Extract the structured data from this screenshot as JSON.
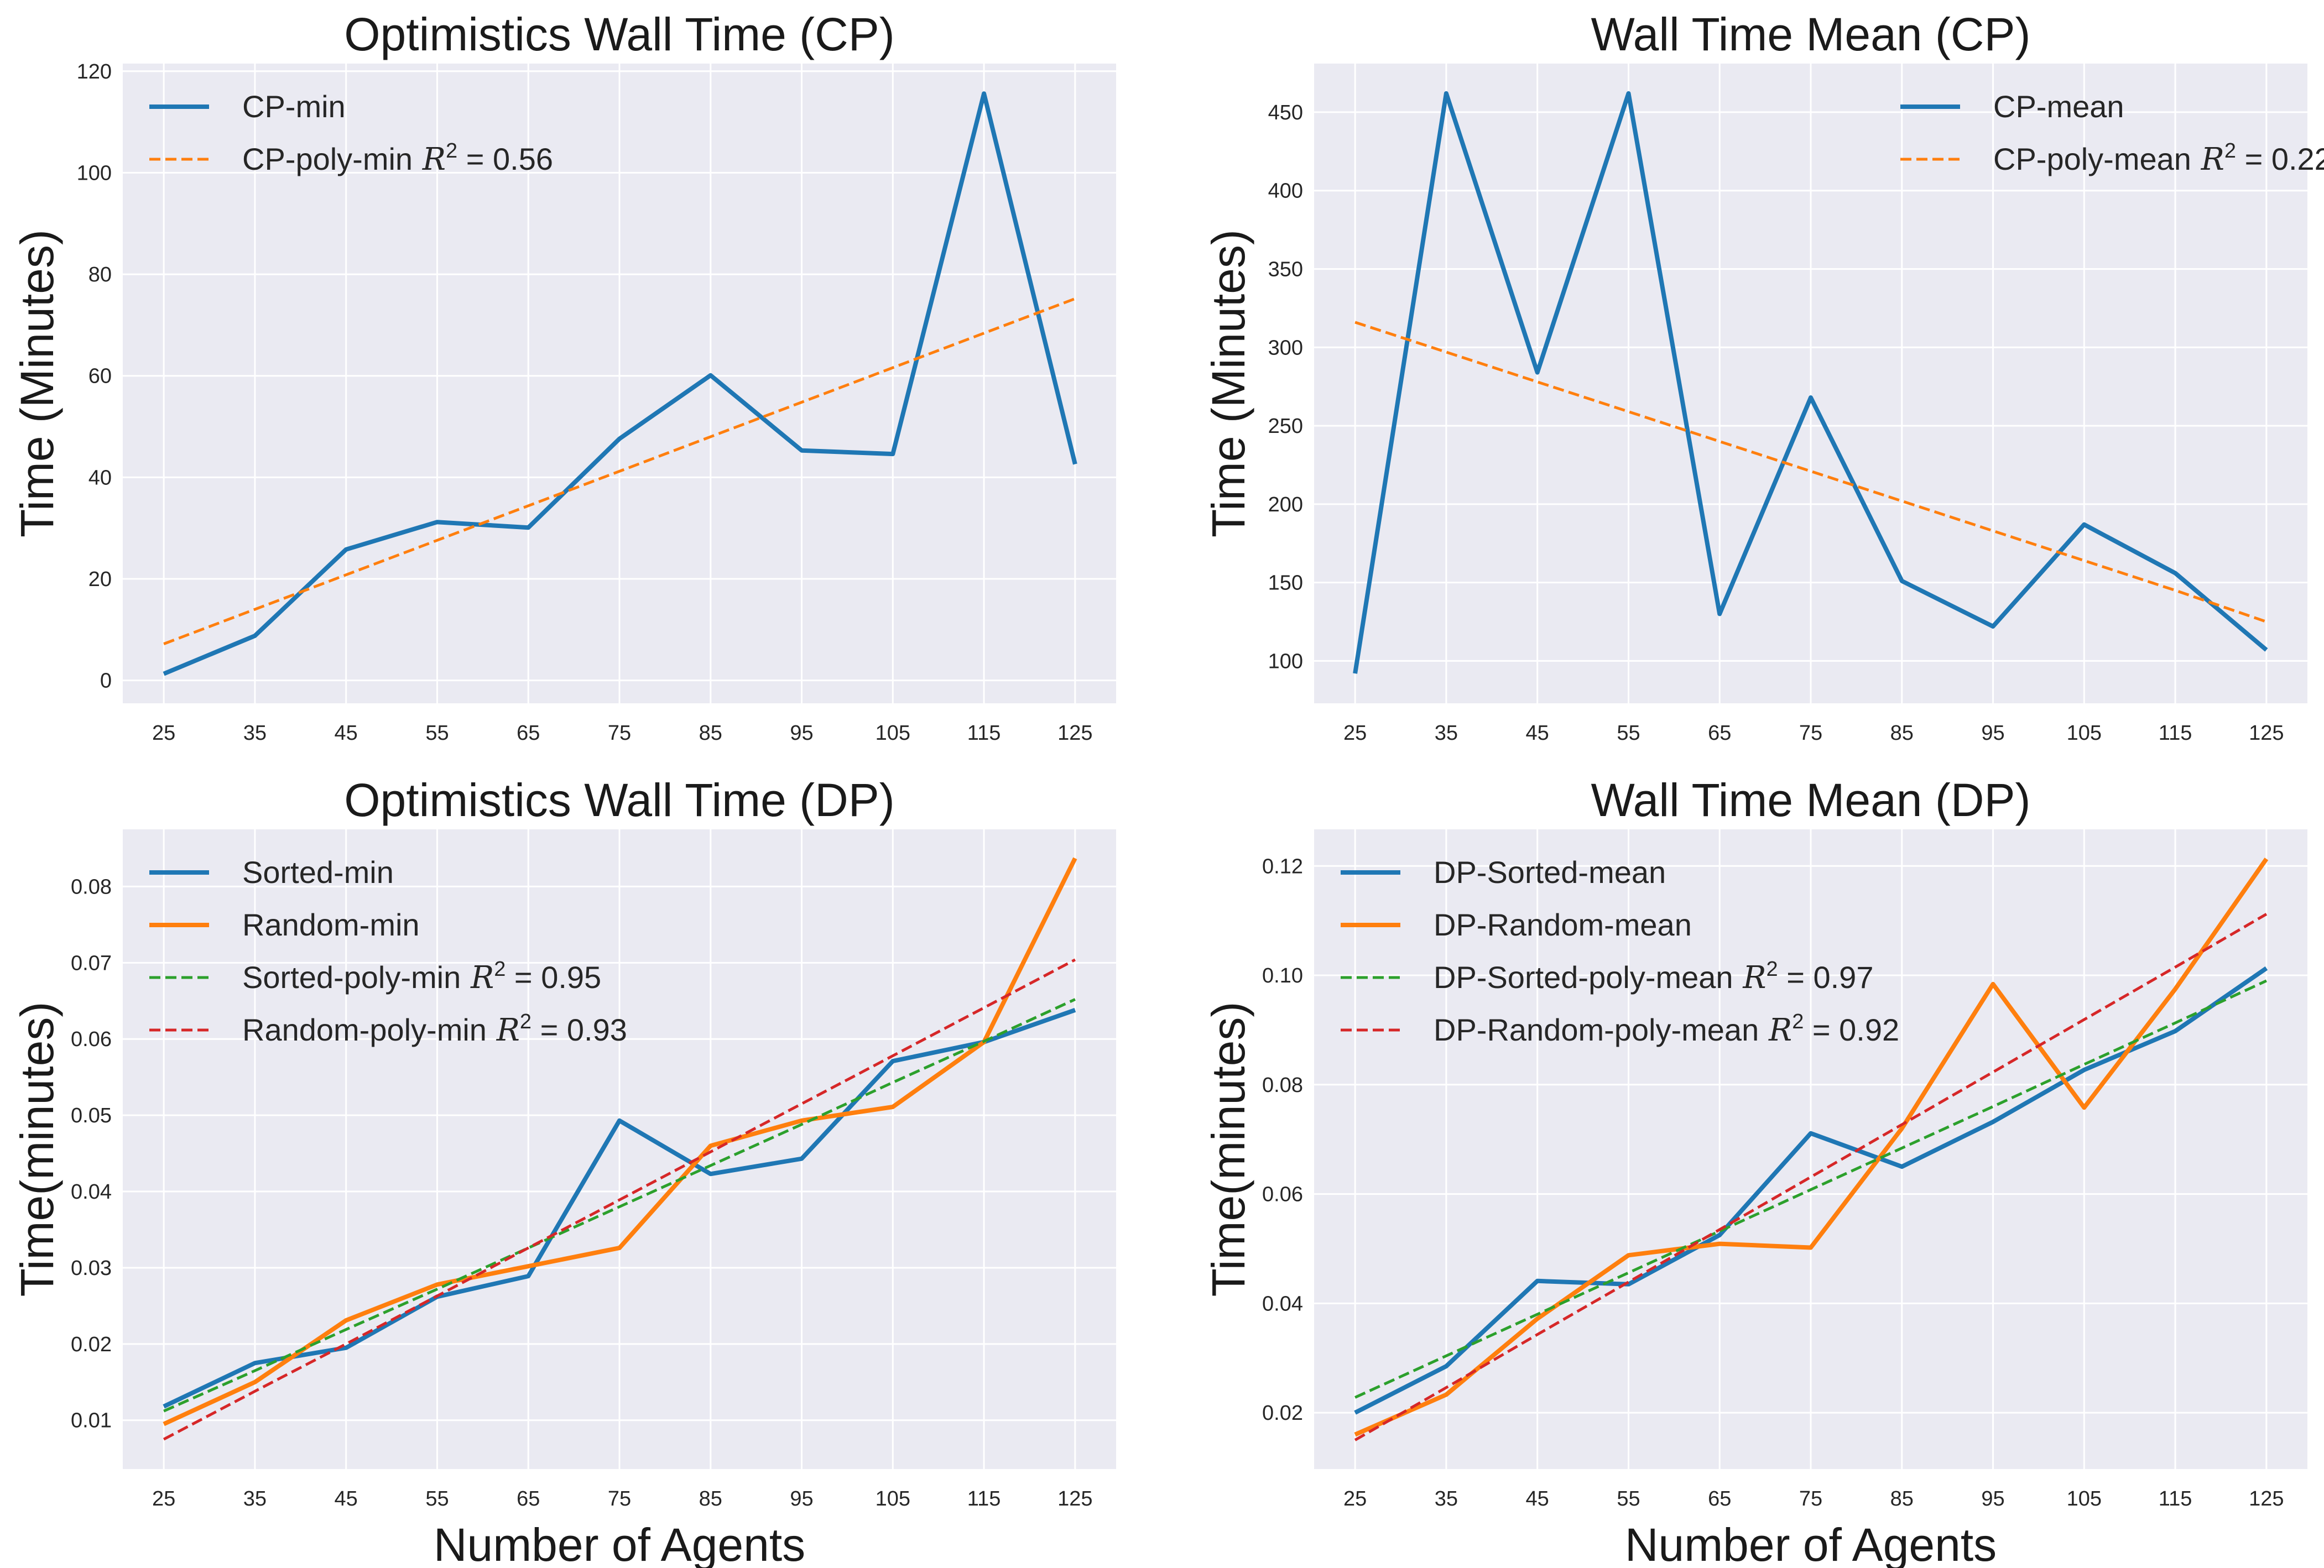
{
  "chart_data": [
    {
      "type": "line",
      "title": "Optimistics Wall Time (CP)",
      "xlabel": "",
      "ylabel": "Time (Minutes)",
      "x": [
        25,
        35,
        45,
        55,
        65,
        75,
        85,
        95,
        105,
        115,
        125
      ],
      "xlim": [
        20.5,
        129.5
      ],
      "ylim": [
        -4.5,
        121.5
      ],
      "yticks": [
        0,
        20,
        40,
        60,
        80,
        100,
        120
      ],
      "ytick_labels": [
        "0",
        "20",
        "40",
        "60",
        "80",
        "100",
        "120"
      ],
      "grid": true,
      "legend_position": "top-left",
      "series": [
        {
          "name": "CP-min",
          "style": "solid",
          "color": "#1f77b4",
          "values": [
            1.3,
            8.8,
            25.8,
            31.2,
            30.1,
            47.6,
            60.1,
            45.3,
            44.6,
            115.6,
            42.6
          ]
        },
        {
          "name": "CP-poly-min",
          "r2_label": "R",
          "r2_value": "= 0.56",
          "style": "dashed",
          "color": "#ff7f0e",
          "values": [
            7.2,
            14.0,
            20.8,
            27.6,
            34.4,
            41.2,
            48.0,
            54.8,
            61.6,
            68.4,
            75.2
          ]
        }
      ]
    },
    {
      "type": "line",
      "title": "Wall Time Mean (CP)",
      "xlabel": "",
      "ylabel": "Time (Minutes)",
      "x": [
        25,
        35,
        45,
        55,
        65,
        75,
        85,
        95,
        105,
        115,
        125
      ],
      "xlim": [
        20.5,
        129.5
      ],
      "ylim": [
        73,
        481
      ],
      "yticks": [
        100,
        150,
        200,
        250,
        300,
        350,
        400,
        450
      ],
      "ytick_labels": [
        "100",
        "150",
        "200",
        "250",
        "300",
        "350",
        "400",
        "450"
      ],
      "grid": true,
      "legend_position": "top-right",
      "series": [
        {
          "name": "CP-mean",
          "style": "solid",
          "color": "#1f77b4",
          "values": [
            92,
            462,
            284,
            462,
            130,
            268,
            151,
            122,
            187,
            156,
            107
          ]
        },
        {
          "name": "CP-poly-mean",
          "r2_label": "R",
          "r2_value": "= 0.22",
          "style": "dashed",
          "color": "#ff7f0e",
          "values": [
            316,
            297,
            278,
            259,
            240,
            221,
            202,
            183,
            164,
            145,
            125
          ]
        }
      ]
    },
    {
      "type": "line",
      "title": "Optimistics Wall Time (DP)",
      "xlabel": "Number of Agents",
      "ylabel": "Time(minutes)",
      "x": [
        25,
        35,
        45,
        55,
        65,
        75,
        85,
        95,
        105,
        115,
        125
      ],
      "xlim": [
        20.5,
        129.5
      ],
      "ylim": [
        0.0036,
        0.0875
      ],
      "yticks": [
        0.01,
        0.02,
        0.03,
        0.04,
        0.05,
        0.06,
        0.07,
        0.08
      ],
      "ytick_labels": [
        "0.01",
        "0.02",
        "0.03",
        "0.04",
        "0.05",
        "0.06",
        "0.07",
        "0.08"
      ],
      "grid": true,
      "legend_position": "top-left",
      "series": [
        {
          "name": "Sorted-min",
          "style": "solid",
          "color": "#1f77b4",
          "values": [
            0.0118,
            0.0175,
            0.0195,
            0.0262,
            0.0289,
            0.0493,
            0.0423,
            0.0443,
            0.0571,
            0.0596,
            0.0638
          ]
        },
        {
          "name": "Random-min",
          "style": "solid",
          "color": "#ff7f0e",
          "values": [
            0.0095,
            0.015,
            0.0231,
            0.0278,
            0.0302,
            0.0326,
            0.046,
            0.0493,
            0.0511,
            0.0596,
            0.0837
          ]
        },
        {
          "name": "Sorted-poly-min",
          "r2_label": "R",
          "r2_value": "= 0.95",
          "style": "dashed",
          "color": "#2ca02c",
          "values": [
            0.0112,
            0.0165,
            0.0219,
            0.0272,
            0.0326,
            0.038,
            0.0434,
            0.0488,
            0.0543,
            0.0597,
            0.0652
          ]
        },
        {
          "name": "Random-poly-min",
          "r2_label": "R",
          "r2_value": "= 0.93",
          "style": "dashed",
          "color": "#d62728",
          "values": [
            0.0075,
            0.0138,
            0.02,
            0.0263,
            0.0326,
            0.0389,
            0.0452,
            0.0515,
            0.0578,
            0.0641,
            0.0704
          ]
        }
      ]
    },
    {
      "type": "line",
      "title": "Wall Time Mean (DP)",
      "xlabel": "Number of Agents",
      "ylabel": "Time(minutes)",
      "x": [
        25,
        35,
        45,
        55,
        65,
        75,
        85,
        95,
        105,
        115,
        125
      ],
      "xlim": [
        20.5,
        129.5
      ],
      "ylim": [
        0.0097,
        0.1267
      ],
      "yticks": [
        0.02,
        0.04,
        0.06,
        0.08,
        0.1,
        0.12
      ],
      "ytick_labels": [
        "0.02",
        "0.04",
        "0.06",
        "0.08",
        "0.10",
        "0.12"
      ],
      "grid": true,
      "legend_position": "top-left",
      "series": [
        {
          "name": "DP-Sorted-mean",
          "style": "solid",
          "color": "#1f77b4",
          "values": [
            0.02,
            0.0285,
            0.0441,
            0.0435,
            0.0525,
            0.0711,
            0.065,
            0.0732,
            0.0827,
            0.0898,
            0.1013
          ]
        },
        {
          "name": "DP-Random-mean",
          "style": "solid",
          "color": "#ff7f0e",
          "values": [
            0.016,
            0.0233,
            0.0372,
            0.0488,
            0.0509,
            0.0502,
            0.072,
            0.0984,
            0.0758,
            0.0975,
            0.1213
          ]
        },
        {
          "name": "DP-Sorted-poly-mean",
          "r2_label": "R",
          "r2_value": "= 0.97",
          "style": "dashed",
          "color": "#2ca02c",
          "values": [
            0.0228,
            0.0304,
            0.038,
            0.0456,
            0.0532,
            0.0608,
            0.0684,
            0.076,
            0.0837,
            0.0913,
            0.099
          ]
        },
        {
          "name": "DP-Random-poly-mean",
          "r2_label": "R",
          "r2_value": "= 0.92",
          "style": "dashed",
          "color": "#d62728",
          "values": [
            0.015,
            0.0246,
            0.0343,
            0.0439,
            0.0535,
            0.0631,
            0.0727,
            0.0823,
            0.0919,
            0.1015,
            0.1112
          ]
        }
      ]
    }
  ]
}
